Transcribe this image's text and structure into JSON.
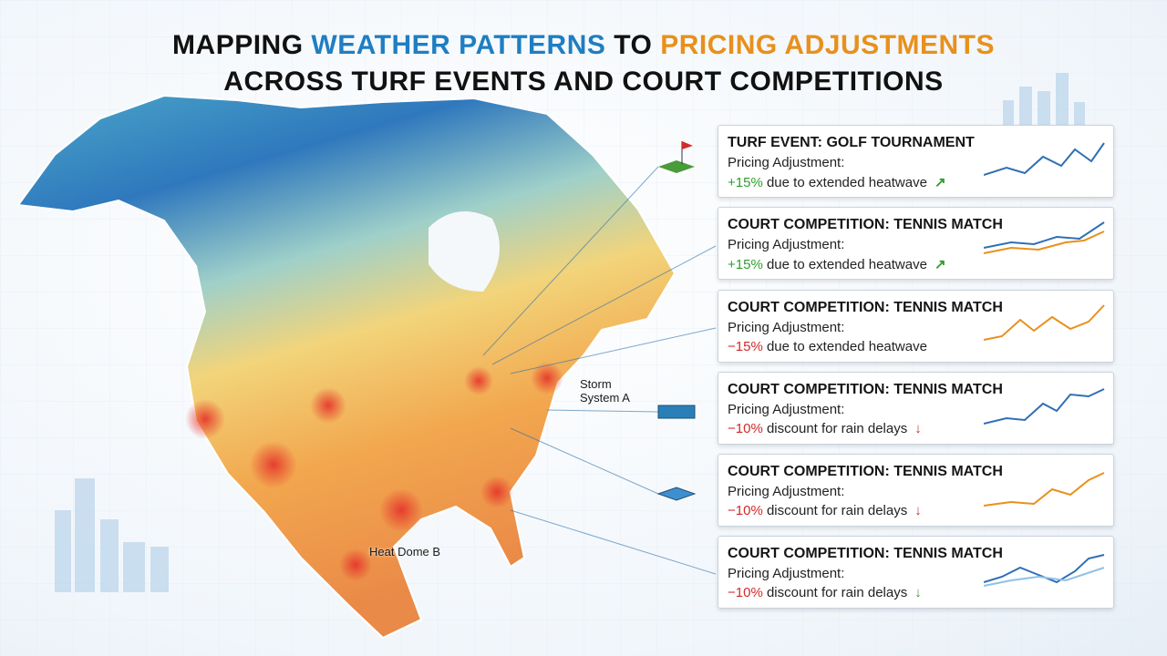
{
  "header": {
    "title_parts": [
      "MAPPING ",
      "WEATHER PATTERNS",
      " TO ",
      "PRICING ADJUSTMENTS"
    ],
    "title_line2": "ACROSS TURF EVENTS AND COURT COMPETITIONS"
  },
  "map_labels": [
    "Storm System A",
    "Heat Dome B"
  ],
  "cards": [
    {
      "title": "TURF EVENT: GOLF TOURNAMENT",
      "label": "Pricing Adjustment:",
      "adjustment": "+15%",
      "reason": "due to extended heatwave",
      "color": "#2e9e2e"
    },
    {
      "title": "COURT COMPETITION: TENNIS MATCH",
      "label": "Pricing Adjustment:",
      "adjustment": "+15%",
      "reason": "due to extended heatwave",
      "color": "#2e9e2e"
    },
    {
      "title": "COURT COMPETITION: TENNIS MATCH",
      "label": "Pricing Adjustment:",
      "adjustment": "−15%",
      "reason": "due to extended heatwave",
      "color": "#d12a2a"
    },
    {
      "title": "COURT COMPETITION: TENNIS MATCH",
      "label": "Pricing Adjustment:",
      "adjustment": "−10%",
      "reason": "discount for rain delays",
      "color": "#d12a2a"
    },
    {
      "title": "COURT COMPETITION: TENNIS MATCH",
      "label": "Pricing Adjustment:",
      "adjustment": "−10%",
      "reason": "discount for rain delays",
      "color": "#d12a2a"
    },
    {
      "title": "COURT COMPETITION: TENNIS MATCH",
      "label": "Pricing Adjustment:",
      "adjustment": "−10%",
      "reason": "discount for rain delays",
      "color": "#d12a2a"
    }
  ]
}
